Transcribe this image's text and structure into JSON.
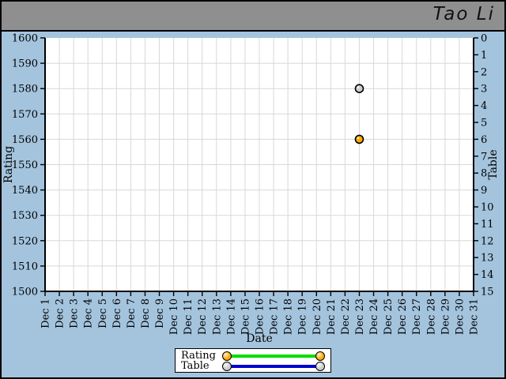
{
  "header": {
    "title": "Tao Li"
  },
  "colors": {
    "background": "#a4c4de",
    "header_bg": "#8f8f8f",
    "plot_bg": "#ffffff",
    "grid": "#d8d8d8",
    "axis": "#000000",
    "rating_line": "#00dd00",
    "rating_marker": "#ffaa00",
    "table_line": "#0000cc",
    "table_marker": "#cccccc"
  },
  "chart_data": {
    "type": "scatter",
    "title": "Tao Li",
    "xlabel": "Date",
    "grid": true,
    "legend_position": "bottom-center",
    "x_ticks": [
      "Dec 1",
      "Dec 2",
      "Dec 3",
      "Dec 4",
      "Dec 5",
      "Dec 6",
      "Dec 7",
      "Dec 8",
      "Dec 9",
      "Dec 10",
      "Dec 11",
      "Dec 12",
      "Dec 13",
      "Dec 14",
      "Dec 15",
      "Dec 16",
      "Dec 17",
      "Dec 18",
      "Dec 19",
      "Dec 20",
      "Dec 21",
      "Dec 22",
      "Dec 23",
      "Dec 24",
      "Dec 25",
      "Dec 26",
      "Dec 27",
      "Dec 28",
      "Dec 29",
      "Dec 30",
      "Dec 31"
    ],
    "left_axis": {
      "label": "Rating",
      "min": 1500,
      "max": 1600,
      "ticks": [
        1600,
        1590,
        1580,
        1570,
        1560,
        1550,
        1540,
        1530,
        1520,
        1510,
        1500
      ]
    },
    "right_axis": {
      "label": "Table",
      "min": 0,
      "max": 15,
      "inverted": true,
      "ticks": [
        0,
        1,
        2,
        3,
        4,
        5,
        6,
        7,
        8,
        9,
        10,
        11,
        12,
        13,
        14,
        15
      ]
    },
    "series": [
      {
        "name": "Rating",
        "axis": "left",
        "line_color": "#00dd00",
        "marker_color": "#ffaa00",
        "points": [
          {
            "x": "Dec 23",
            "y": 1560
          }
        ]
      },
      {
        "name": "Table",
        "axis": "right",
        "line_color": "#0000cc",
        "marker_color": "#cccccc",
        "points": [
          {
            "x": "Dec 23",
            "y": 3
          }
        ]
      }
    ]
  }
}
